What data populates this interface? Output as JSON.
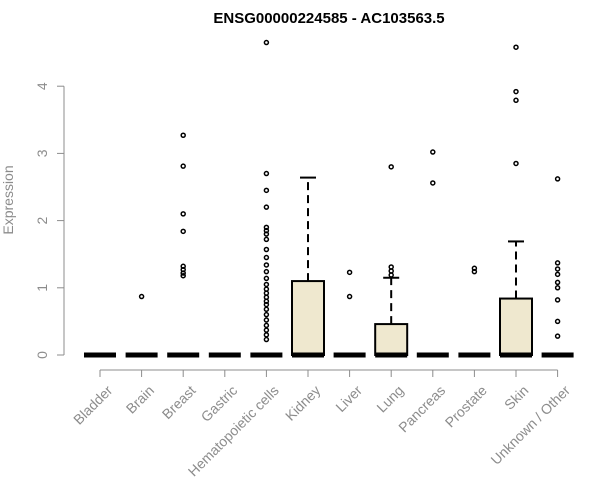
{
  "chart_data": {
    "type": "box",
    "title": "ENSG00000224585 - AC103563.5",
    "xlabel": "",
    "ylabel": "Expression",
    "ylim": [
      0,
      4.7
    ],
    "yticks": [
      "0",
      "1",
      "2",
      "3",
      "4"
    ],
    "grid": false,
    "box_fill": "#efe8cf",
    "categories": [
      "Bladder",
      "Brain",
      "Breast",
      "Gastric",
      "Hematopoietic cells",
      "Kidney",
      "Liver",
      "Lung",
      "Pancreas",
      "Prostate",
      "Skin",
      "Unknown / Other"
    ],
    "boxes": [
      {
        "q1": 0,
        "median": 0,
        "q3": 0,
        "whisker_low": 0,
        "whisker_high": 0,
        "outliers": []
      },
      {
        "q1": 0,
        "median": 0,
        "q3": 0,
        "whisker_low": 0,
        "whisker_high": 0,
        "outliers": [
          0.87
        ]
      },
      {
        "q1": 0,
        "median": 0,
        "q3": 0,
        "whisker_low": 0,
        "whisker_high": 0,
        "outliers": [
          1.18,
          1.22,
          1.27,
          1.32,
          1.84,
          2.1,
          2.81,
          3.27
        ]
      },
      {
        "q1": 0,
        "median": 0,
        "q3": 0,
        "whisker_low": 0,
        "whisker_high": 0,
        "outliers": []
      },
      {
        "q1": 0,
        "median": 0,
        "q3": 0,
        "whisker_low": 0,
        "whisker_high": 0,
        "outliers": [
          0.23,
          0.3,
          0.37,
          0.44,
          0.52,
          0.6,
          0.68,
          0.75,
          0.8,
          0.86,
          0.92,
          0.98,
          1.05,
          1.14,
          1.24,
          1.34,
          1.45,
          1.57,
          1.72,
          1.8,
          1.85,
          1.9,
          2.2,
          2.45,
          2.7,
          4.65
        ]
      },
      {
        "q1": 0,
        "median": 0,
        "q3": 1.1,
        "whisker_low": 0,
        "whisker_high": 2.64,
        "outliers": []
      },
      {
        "q1": 0,
        "median": 0,
        "q3": 0,
        "whisker_low": 0,
        "whisker_high": 0,
        "outliers": [
          0.87,
          1.23
        ]
      },
      {
        "q1": 0,
        "median": 0,
        "q3": 0.46,
        "whisker_low": 0,
        "whisker_high": 1.15,
        "outliers": [
          1.19,
          1.25,
          1.31,
          2.8
        ]
      },
      {
        "q1": 0,
        "median": 0,
        "q3": 0,
        "whisker_low": 0,
        "whisker_high": 0,
        "outliers": [
          2.56,
          3.02
        ]
      },
      {
        "q1": 0,
        "median": 0,
        "q3": 0,
        "whisker_low": 0,
        "whisker_high": 0,
        "outliers": [
          1.24,
          1.29
        ]
      },
      {
        "q1": 0,
        "median": 0,
        "q3": 0.84,
        "whisker_low": 0,
        "whisker_high": 1.69,
        "outliers": [
          2.85,
          3.79,
          3.92,
          4.58
        ]
      },
      {
        "q1": 0,
        "median": 0,
        "q3": 0,
        "whisker_low": 0,
        "whisker_high": 0,
        "outliers": [
          0.28,
          0.5,
          0.82,
          1.0,
          1.08,
          1.2,
          1.28,
          1.37,
          2.62
        ]
      }
    ]
  }
}
